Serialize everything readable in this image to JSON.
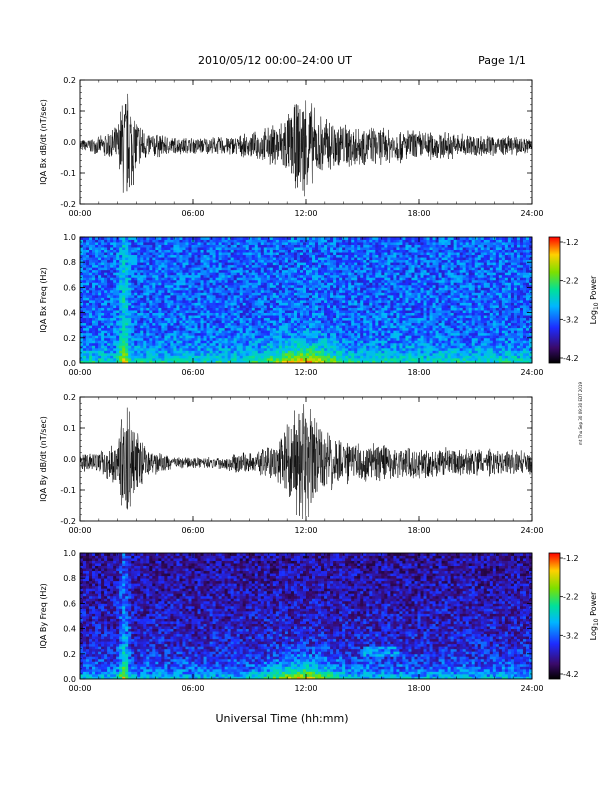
{
  "header": {
    "title": "2010/05/12  00:00–24:00 UT",
    "page": "Page 1/1"
  },
  "footer": {
    "xlabel": "Universal Time (hh:mm)"
  },
  "side_note": "mt Thu Sep 30 09:30 EDT 2019",
  "colorbar": {
    "label_prefix": "Log",
    "label_sub": "10",
    "label_suffix": " Power",
    "ticks": [
      "-1.2",
      "-2.2",
      "-3.2",
      "-4.2"
    ]
  },
  "colors": {
    "trace": "#000000",
    "background": "#ffffff"
  },
  "x_ticks": [
    "00:00",
    "06:00",
    "12:00",
    "18:00",
    "24:00"
  ],
  "chart_data": [
    {
      "type": "line",
      "ylabel": "IQA Bx dB/dt (nT/sec)",
      "xlim": [
        0,
        24
      ],
      "ylim": [
        -0.2,
        0.2
      ],
      "y_ticks": [
        "0.2",
        "0.1",
        "0.0",
        "-0.1",
        "-0.2"
      ],
      "x": [
        0,
        1,
        2,
        2.3,
        2.6,
        2.9,
        3.5,
        5,
        7,
        9,
        10.5,
        11.5,
        12,
        12.5,
        13.5,
        15,
        17,
        19,
        21,
        24
      ],
      "series": [
        {
          "values": [
            0.02,
            0.03,
            0.07,
            0.2,
            0.2,
            0.12,
            0.05,
            0.03,
            0.03,
            0.04,
            0.08,
            0.15,
            0.2,
            0.12,
            0.09,
            0.07,
            0.06,
            0.05,
            0.04,
            0.03
          ]
        }
      ]
    },
    {
      "type": "heatmap",
      "ylabel": "IQA Bx Freq (Hz)",
      "xlim": [
        0,
        24
      ],
      "ylim": [
        0,
        1.0
      ],
      "y_ticks": [
        "1.0",
        "0.8",
        "0.6",
        "0.4",
        "0.2",
        "0.0"
      ],
      "colorbar_range": [
        -4.2,
        -1.2
      ]
    },
    {
      "type": "line",
      "ylabel": "IQA By dB/dt (nT/sec)",
      "xlim": [
        0,
        24
      ],
      "ylim": [
        -0.2,
        0.2
      ],
      "y_ticks": [
        "0.2",
        "0.1",
        "0.0",
        "-0.1",
        "-0.2"
      ],
      "x": [
        0,
        1,
        2,
        2.3,
        2.6,
        2.9,
        3.5,
        5,
        7,
        9,
        10.5,
        11.5,
        12,
        12.5,
        13.5,
        15,
        17,
        19,
        21,
        24
      ],
      "series": [
        {
          "values": [
            0.03,
            0.04,
            0.08,
            0.2,
            0.2,
            0.14,
            0.05,
            0.02,
            0.02,
            0.04,
            0.07,
            0.2,
            0.2,
            0.16,
            0.09,
            0.07,
            0.06,
            0.05,
            0.05,
            0.04
          ]
        }
      ]
    },
    {
      "type": "heatmap",
      "ylabel": "IQA By Freq (Hz)",
      "xlim": [
        0,
        24
      ],
      "ylim": [
        0,
        1.0
      ],
      "y_ticks": [
        "1.0",
        "0.8",
        "0.6",
        "0.4",
        "0.2",
        "0.0"
      ],
      "colorbar_range": [
        -4.2,
        -1.2
      ]
    }
  ]
}
